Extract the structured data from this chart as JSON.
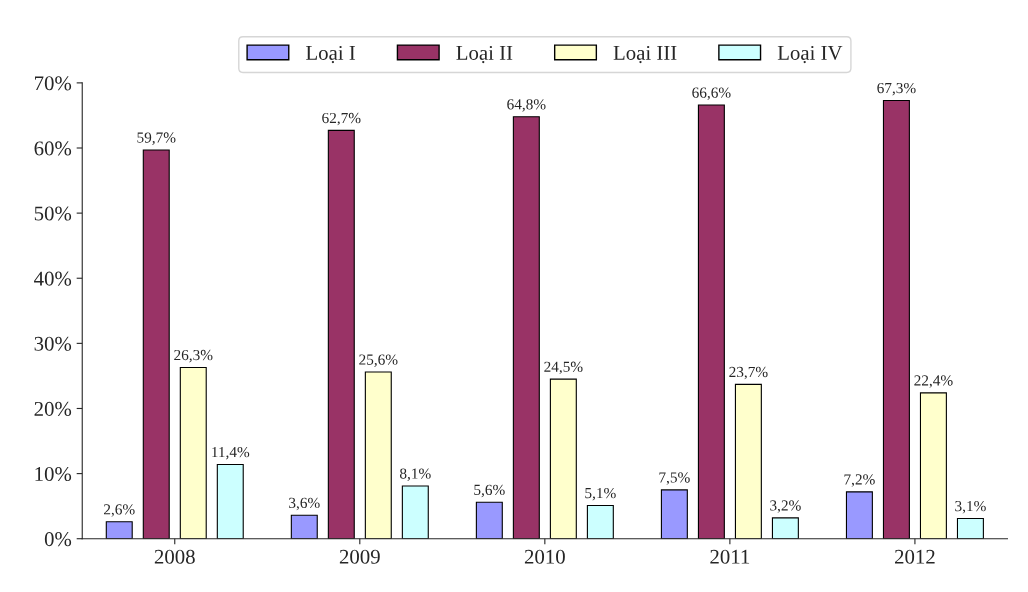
{
  "chart_data": {
    "type": "bar",
    "categories": [
      "2008",
      "2009",
      "2010",
      "2011",
      "2012"
    ],
    "series": [
      {
        "name": "Loại I",
        "color": "#9999ff",
        "values": [
          2.6,
          3.6,
          5.6,
          7.5,
          7.2
        ],
        "value_labels": [
          "2,6%",
          "3,6%",
          "5,6%",
          "7,5%",
          "7,2%"
        ]
      },
      {
        "name": "Loại II",
        "color": "#993366",
        "values": [
          59.7,
          62.7,
          64.8,
          66.6,
          67.3
        ],
        "value_labels": [
          "59,7%",
          "62,7%",
          "64,8%",
          "66,6%",
          "67,3%"
        ]
      },
      {
        "name": "Loại III",
        "color": "#ffffcc",
        "values": [
          26.3,
          25.6,
          24.5,
          23.7,
          22.4
        ],
        "value_labels": [
          "26,3%",
          "25,6%",
          "24,5%",
          "23,7%",
          "22,4%"
        ]
      },
      {
        "name": "Loại IV",
        "color": "#ccffff",
        "values": [
          11.4,
          8.1,
          5.1,
          3.2,
          3.1
        ],
        "value_labels": [
          "11,4%",
          "8,1%",
          "5,1%",
          "3,2%",
          "3,1%"
        ]
      }
    ],
    "ylim": [
      0,
      70
    ],
    "yticks": [
      {
        "value": 0,
        "label": "0%"
      },
      {
        "value": 10,
        "label": "10%"
      },
      {
        "value": 20,
        "label": "20%"
      },
      {
        "value": 30,
        "label": "30%"
      },
      {
        "value": 40,
        "label": "40%"
      },
      {
        "value": 50,
        "label": "50%"
      },
      {
        "value": 60,
        "label": "60%"
      },
      {
        "value": 70,
        "label": "70%"
      }
    ],
    "grid": false,
    "legend": "top"
  }
}
